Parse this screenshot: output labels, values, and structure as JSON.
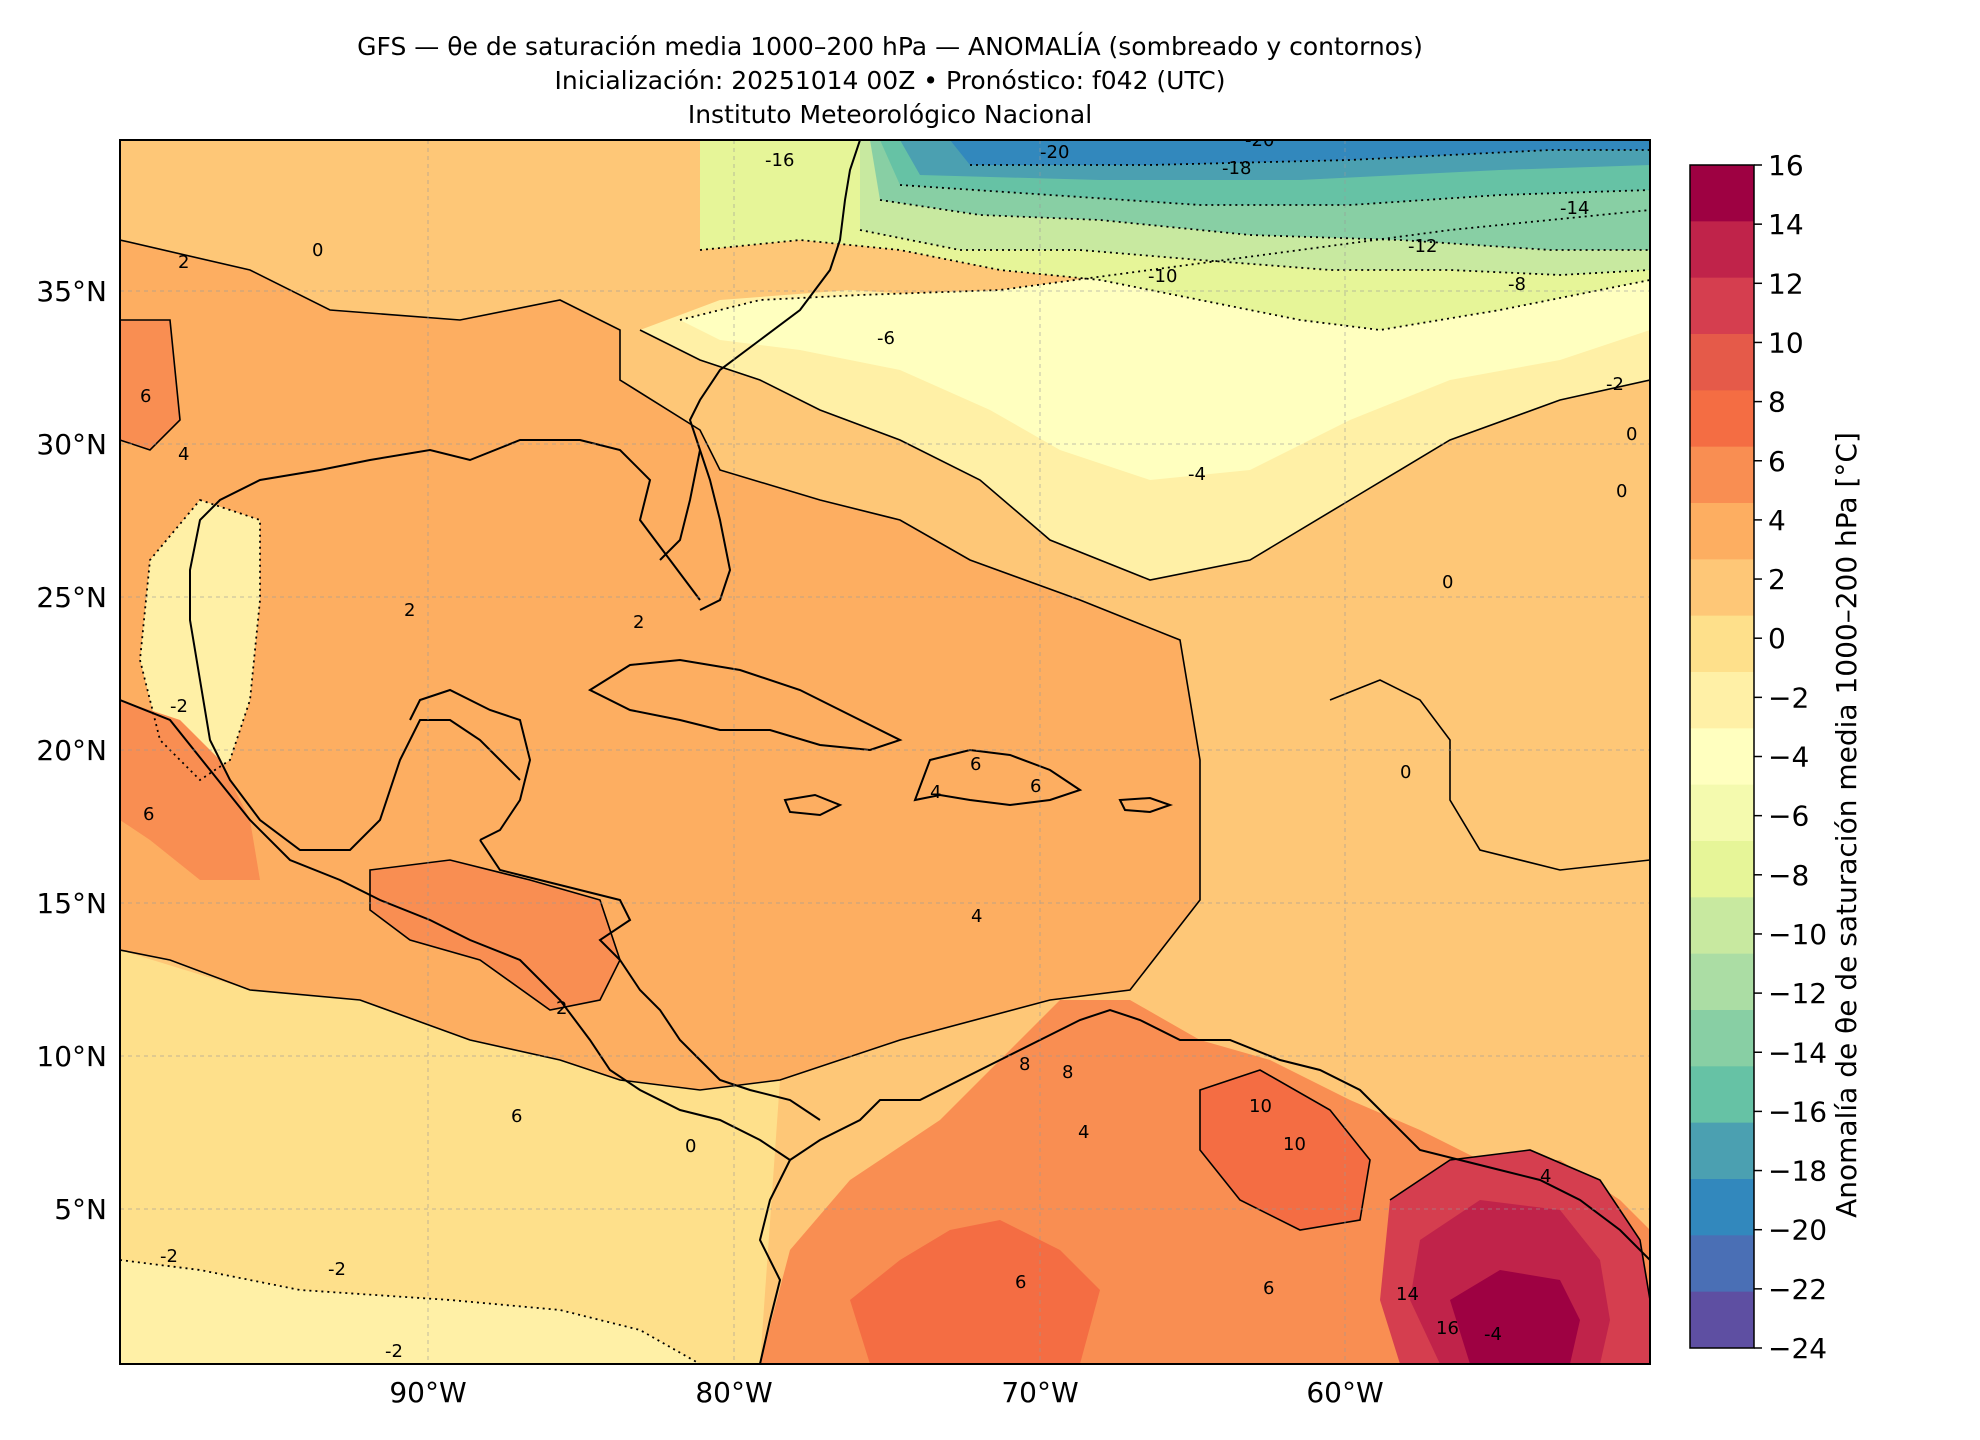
{
  "header": {
    "line1": "GFS — θe de saturación media 1000–200 hPa — ANOMALÍA (sombreado y contornos)",
    "line2": "Inicialización: 20251014 00Z   •   Pronóstico: f042 (UTC)",
    "line3": "Instituto Meteorológico Nacional"
  },
  "map": {
    "lat_labels": [
      "35°N",
      "30°N",
      "25°N",
      "20°N",
      "15°N",
      "10°N",
      "5°N"
    ],
    "lon_labels": [
      "90°W",
      "80°W",
      "70°W",
      "60°W"
    ],
    "contour_labels": [
      "-20",
      "-20",
      "-18",
      "-16",
      "-14",
      "-12",
      "-10",
      "-8",
      "-6",
      "-4",
      "-2",
      "-2",
      "-2",
      "-2",
      "0",
      "0",
      "0",
      "0",
      "0",
      "0",
      "2",
      "2",
      "2",
      "2",
      "4",
      "4",
      "4",
      "4",
      "4",
      "6",
      "6",
      "6",
      "6",
      "6",
      "6",
      "6",
      "8",
      "8",
      "10",
      "10",
      "14",
      "16",
      "-4",
      "-2"
    ]
  },
  "colorbar": {
    "label": "Anomalía de θe de saturación media 1000–200 hPa [°C]",
    "ticks": [
      "16",
      "14",
      "12",
      "10",
      "8",
      "6",
      "4",
      "2",
      "0",
      "−2",
      "−4",
      "−6",
      "−8",
      "−10",
      "−12",
      "−14",
      "−16",
      "−18",
      "−20",
      "−22",
      "−24"
    ],
    "colors": [
      "#9e0142",
      "#c0234a",
      "#d53e4f",
      "#e55a49",
      "#f46d43",
      "#f98e52",
      "#fdae61",
      "#fec777",
      "#fee08b",
      "#fff0a6",
      "#ffffbf",
      "#f4faae",
      "#e6f598",
      "#c8e9a0",
      "#abdda4",
      "#88cfa4",
      "#66c2a5",
      "#4ba0b1",
      "#3288bd",
      "#4a6fb5",
      "#5e4fa2"
    ]
  }
}
